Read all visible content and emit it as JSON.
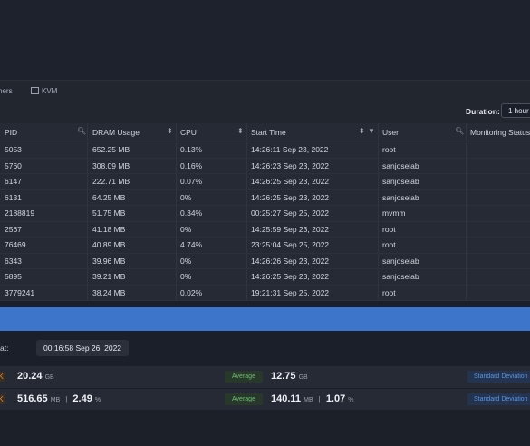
{
  "tabs": {
    "partial": "ners",
    "kvm": "KVM"
  },
  "toolbar": {
    "duration_label": "Duration:",
    "duration_value": "1 hour"
  },
  "table": {
    "headers": {
      "pid": "PID",
      "dram": "DRAM Usage",
      "cpu": "CPU",
      "start": "Start Time",
      "user": "User",
      "monitoring": "Monitoring Status"
    },
    "rows": [
      {
        "pid": "5053",
        "dram": "652.25 MB",
        "cpu": "0.13%",
        "start": "14:26:11 Sep 23, 2022",
        "user": "root"
      },
      {
        "pid": "5760",
        "dram": "308.09 MB",
        "cpu": "0.16%",
        "start": "14:26:23 Sep 23, 2022",
        "user": "sanjoselab"
      },
      {
        "pid": "6147",
        "dram": "222.71 MB",
        "cpu": "0.07%",
        "start": "14:26:25 Sep 23, 2022",
        "user": "sanjoselab"
      },
      {
        "pid": "6131",
        "dram": "64.25 MB",
        "cpu": "0%",
        "start": "14:26:25 Sep 23, 2022",
        "user": "sanjoselab"
      },
      {
        "pid": "2188819",
        "dram": "51.75 MB",
        "cpu": "0.34%",
        "start": "00:25:27 Sep 25, 2022",
        "user": "mvmm"
      },
      {
        "pid": "2567",
        "dram": "41.18 MB",
        "cpu": "0%",
        "start": "14:25:59 Sep 23, 2022",
        "user": "root"
      },
      {
        "pid": "76469",
        "dram": "40.89 MB",
        "cpu": "4.74%",
        "start": "23:25:04 Sep 25, 2022",
        "user": "root"
      },
      {
        "pid": "6343",
        "dram": "39.96 MB",
        "cpu": "0%",
        "start": "14:26:26 Sep 23, 2022",
        "user": "sanjoselab"
      },
      {
        "pid": "5895",
        "dram": "39.21 MB",
        "cpu": "0%",
        "start": "14:26:25 Sep 23, 2022",
        "user": "sanjoselab"
      },
      {
        "pid": "3779241",
        "dram": "38.24 MB",
        "cpu": "0.02%",
        "start": "19:21:31 Sep 25, 2022",
        "user": "root"
      }
    ]
  },
  "at": {
    "label": "at:",
    "value": "00:16:58 Sep 26, 2022"
  },
  "stats": [
    {
      "icon": "K",
      "value": "20.24",
      "unit": "GB",
      "avg_label": "Average",
      "avg_value": "12.75",
      "avg_unit": "GB",
      "std_label": "Standard Deviation"
    },
    {
      "icon": "K",
      "value": "516.65",
      "unit": "MB",
      "sep": "|",
      "pct": "2.49",
      "pct_unit": "%",
      "avg_label": "Average",
      "avg_value": "140.11",
      "avg_unit": "MB",
      "avg_sep": "|",
      "avg_pct": "1.07",
      "avg_pct_unit": "%",
      "std_label": "Standard Deviation"
    }
  ],
  "icons": {
    "search": "search-icon",
    "sort": "sort-icon",
    "filter": "filter-icon",
    "kvm": "monitor-icon"
  }
}
